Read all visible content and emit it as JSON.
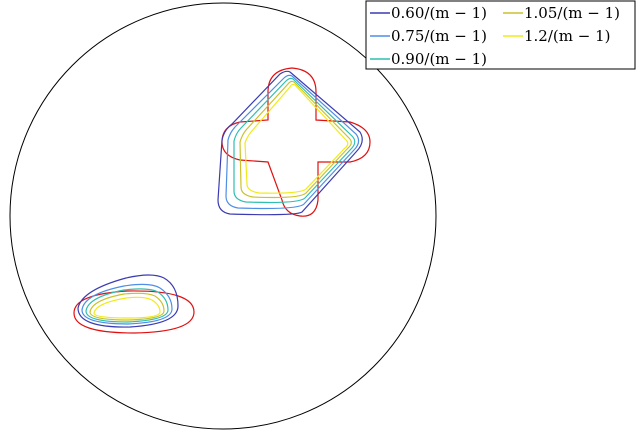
{
  "legend": {
    "items": [
      {
        "label": "0.60/(m − 1)",
        "color": "#3b3bb3"
      },
      {
        "label": "0.75/(m − 1)",
        "color": "#4f8ee6"
      },
      {
        "label": "0.90/(m − 1)",
        "color": "#2fbfb0"
      },
      {
        "label": "1.05/(m − 1)",
        "color": "#c9c22e"
      },
      {
        "label": "1.2/(m − 1)",
        "color": "#f0ea1a"
      }
    ]
  },
  "colors": {
    "domain_outline": "#000000",
    "initial_curve": "#e01010"
  }
}
